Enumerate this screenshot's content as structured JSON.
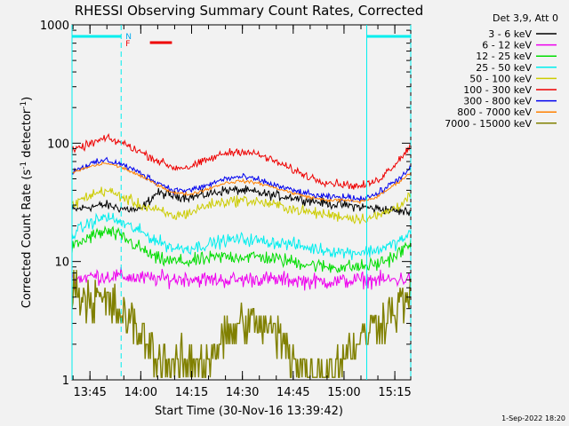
{
  "chart_data": {
    "type": "line",
    "title": "RHESSI Observing Summary Count Rates, Corrected",
    "xlabel": "Start Time (30-Nov-16 13:39:42)",
    "ylabel": "Corrected Count Rate (s-1 detector-1)",
    "ylabel_parts": [
      "Corrected Count Rate (s",
      "-1",
      " detector",
      "-1",
      ")"
    ],
    "x_units": "minutes after 13:39:42 UT",
    "xlim": [
      0,
      100
    ],
    "ylim": [
      1,
      1000
    ],
    "yscale": "log",
    "x_ticks": [
      {
        "value": 5.3,
        "label": "13:45"
      },
      {
        "value": 20.3,
        "label": "14:00"
      },
      {
        "value": 35.3,
        "label": "14:15"
      },
      {
        "value": 50.3,
        "label": "14:30"
      },
      {
        "value": 65.3,
        "label": "14:45"
      },
      {
        "value": 80.3,
        "label": "15:00"
      },
      {
        "value": 95.3,
        "label": "15:15"
      }
    ],
    "y_ticks": [
      {
        "value": 1,
        "label": "1"
      },
      {
        "value": 10,
        "label": "10"
      },
      {
        "value": 100,
        "label": "100"
      },
      {
        "value": 1000,
        "label": "1000"
      }
    ],
    "legend_header": "Det 3,9, Att 0",
    "legend_position": "top-right outside",
    "flags": {
      "N": "N",
      "F": "F"
    },
    "night_intervals": [
      [
        0,
        14.5
      ],
      [
        87.0,
        100
      ]
    ],
    "flare_interval": [
      23.0,
      29.5
    ],
    "x": [
      0,
      5,
      10,
      15,
      20,
      25,
      30,
      35,
      40,
      45,
      50,
      55,
      60,
      65,
      70,
      75,
      80,
      85,
      90,
      95,
      100
    ],
    "series": [
      {
        "name": "3 - 6 keV",
        "color": "#000000",
        "values": [
          27,
          29,
          30,
          28,
          27,
          38,
          36,
          35,
          37,
          40,
          40,
          38,
          36,
          35,
          33,
          31,
          30,
          29,
          28,
          27,
          26
        ],
        "noise": 0.06
      },
      {
        "name": "6 - 12 keV",
        "color": "#ee00ee",
        "values": [
          7,
          7.5,
          7.5,
          7.5,
          7.2,
          7.2,
          7.1,
          7.2,
          7.0,
          7.0,
          7.0,
          7.2,
          7.0,
          7.0,
          6.8,
          6.8,
          6.8,
          7.0,
          7.0,
          7.0,
          7.2
        ],
        "noise": 0.1
      },
      {
        "name": "12 - 25 keV",
        "color": "#00dd00",
        "values": [
          13,
          16,
          18,
          16,
          13,
          10.5,
          10,
          10,
          10.5,
          11,
          11,
          11,
          10.5,
          10,
          9.5,
          9,
          9,
          9,
          9.5,
          11,
          14
        ],
        "noise": 0.09
      },
      {
        "name": "25 - 50 keV",
        "color": "#00eeee",
        "values": [
          17,
          21,
          24,
          21,
          18,
          15,
          13,
          13,
          14,
          15,
          15.5,
          15,
          14.5,
          14,
          13,
          12.5,
          12,
          12,
          12.5,
          14,
          17
        ],
        "noise": 0.08
      },
      {
        "name": "50 - 100 keV",
        "color": "#cccc00",
        "values": [
          30,
          36,
          40,
          35,
          30,
          27,
          24,
          26,
          30,
          32,
          33,
          32,
          30,
          28,
          26,
          25,
          24,
          23,
          24,
          28,
          36
        ],
        "noise": 0.07
      },
      {
        "name": "100 - 300 keV",
        "color": "#ee0000",
        "values": [
          85,
          98,
          110,
          100,
          85,
          72,
          62,
          63,
          72,
          82,
          86,
          80,
          70,
          60,
          52,
          47,
          45,
          43,
          48,
          65,
          95
        ],
        "noise": 0.05
      },
      {
        "name": "300 - 800 keV",
        "color": "#0000ee",
        "values": [
          58,
          66,
          72,
          66,
          56,
          47,
          40,
          40,
          44,
          50,
          52,
          49,
          44,
          40,
          37,
          35,
          35,
          34,
          37,
          47,
          60
        ],
        "noise": 0.04
      },
      {
        "name": "800 - 7000 keV",
        "color": "#ff8000",
        "values": [
          56,
          63,
          68,
          62,
          53,
          45,
          38,
          37,
          41,
          46,
          48,
          46,
          42,
          38,
          35,
          33,
          33,
          32,
          35,
          44,
          56
        ],
        "noise": 0.02
      },
      {
        "name": "7000 - 15000 keV",
        "color": "#808000",
        "values": [
          6,
          5,
          4.5,
          3.5,
          2.5,
          1.6,
          1.3,
          1.3,
          1.5,
          2.2,
          3,
          3,
          2.5,
          1.6,
          1.2,
          1.2,
          1.6,
          2.2,
          3,
          4,
          5
        ],
        "noise": 0.3
      }
    ]
  },
  "footer": {
    "timestamp": "1-Sep-2022 18:20"
  }
}
